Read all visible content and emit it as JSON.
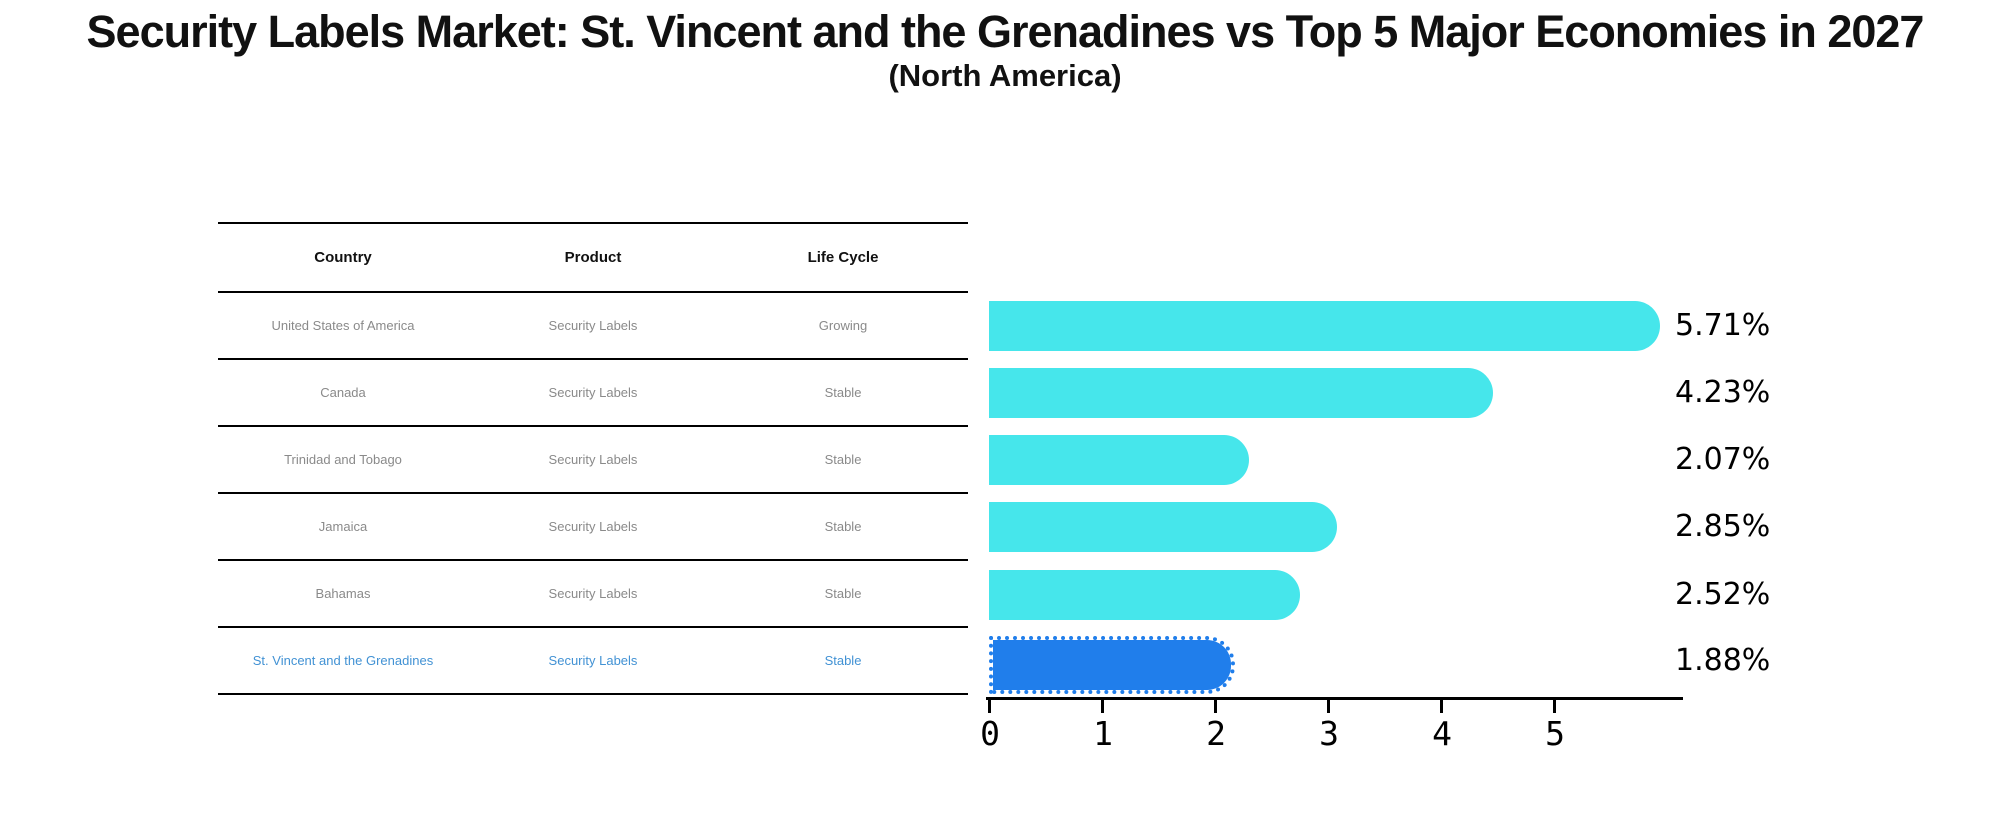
{
  "header": {
    "title": "Security Labels Market: St. Vincent and the Grenadines vs Top 5 Major Economies in 2027",
    "subtitle": "(North America)"
  },
  "table": {
    "headers": [
      "Country",
      "Product",
      "Life Cycle"
    ],
    "rows": [
      {
        "country": "United States of America",
        "product": "Security Labels",
        "life_cycle": "Growing",
        "highlight": false
      },
      {
        "country": "Canada",
        "product": "Security Labels",
        "life_cycle": "Stable",
        "highlight": false
      },
      {
        "country": "Trinidad and Tobago",
        "product": "Security Labels",
        "life_cycle": "Stable",
        "highlight": false
      },
      {
        "country": "Jamaica",
        "product": "Security Labels",
        "life_cycle": "Stable",
        "highlight": false
      },
      {
        "country": "Bahamas",
        "product": "Security Labels",
        "life_cycle": "Stable",
        "highlight": false
      },
      {
        "country": "St. Vincent and the Grenadines",
        "product": "Security Labels",
        "life_cycle": "Stable",
        "highlight": true
      }
    ]
  },
  "chart_data": {
    "type": "bar",
    "orientation": "horizontal",
    "title": "Security Labels Market: St. Vincent and the Grenadines vs Top 5 Major Economies in 2027",
    "subtitle": "(North America)",
    "categories": [
      "United States of America",
      "Canada",
      "Trinidad and Tobago",
      "Jamaica",
      "Bahamas",
      "St. Vincent and the Grenadines"
    ],
    "values": [
      5.71,
      4.23,
      2.07,
      2.85,
      2.52,
      1.88
    ],
    "labels": [
      "5.71%",
      "4.23%",
      "2.07%",
      "2.85%",
      "2.52%",
      "1.88%"
    ],
    "xticks": [
      "0",
      "1",
      "2",
      "3",
      "4",
      "5"
    ],
    "xlim": [
      0,
      6.1
    ],
    "grid": false,
    "legend": "none",
    "bar_color": "#46E6EB",
    "highlight_color": "#207EEB",
    "highlight_index": 5,
    "highlight_edge_style": "dotted"
  },
  "colors": {
    "text": "#111111",
    "muted_text": "#8a8a8a",
    "highlight_text": "#4292D4",
    "axis": "#000000"
  }
}
